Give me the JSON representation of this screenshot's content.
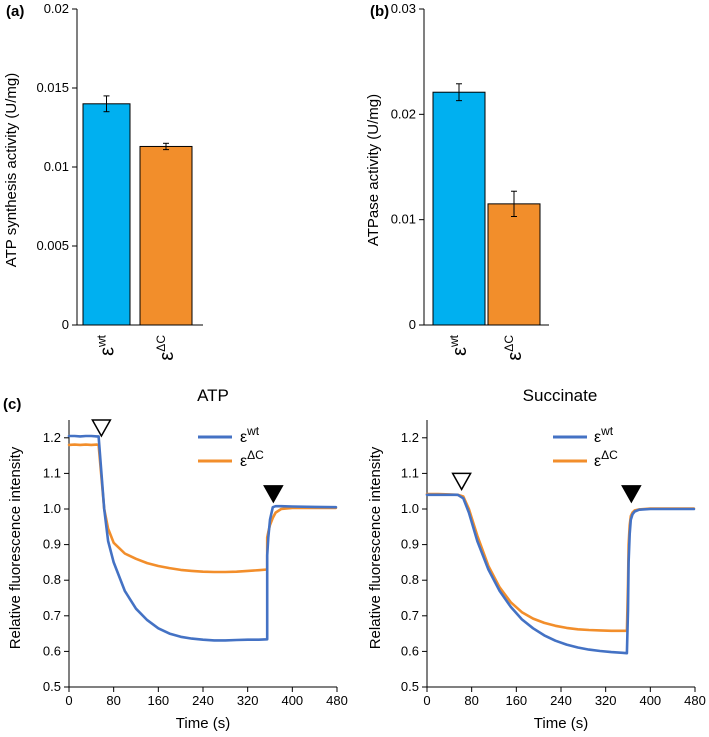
{
  "chart_data": [
    {
      "panel": "(a)",
      "type": "bar",
      "categories": [
        {
          "base": "ε",
          "sup": "wt"
        },
        {
          "base": "ε",
          "sup": "ΔC"
        }
      ],
      "values": [
        0.014,
        0.0113
      ],
      "errors": [
        0.0005,
        0.0002
      ],
      "colors": [
        "#00B0F0",
        "#F28E2B"
      ],
      "ylabel": "ATP synthesis activity (U/mg)",
      "ylim": [
        0,
        0.02
      ],
      "yticks": [
        "0",
        "0.005",
        "0.01",
        "0.015",
        "0.02"
      ],
      "ytick_values": [
        0,
        0.005,
        0.01,
        0.015,
        0.02
      ]
    },
    {
      "panel": "(b)",
      "type": "bar",
      "categories": [
        {
          "base": "ε",
          "sup": "wt"
        },
        {
          "base": "ε",
          "sup": "ΔC"
        }
      ],
      "values": [
        0.0221,
        0.0115
      ],
      "errors": [
        0.0008,
        0.0012
      ],
      "colors": [
        "#00B0F0",
        "#F28E2B"
      ],
      "ylabel": "ATPase activity (U/mg)",
      "ylim": [
        0,
        0.03
      ],
      "yticks": [
        "0",
        "0.01",
        "0.02",
        "0.03"
      ],
      "ytick_values": [
        0,
        0.01,
        0.02,
        0.03
      ]
    },
    {
      "panel": "(c)",
      "type": "line",
      "title": "ATP",
      "xlabel": "Time (s)",
      "ylabel": "Relative fluorescence intensity",
      "xlim": [
        0,
        480
      ],
      "ylim": [
        0.5,
        1.25
      ],
      "xticks": [
        0,
        80,
        160,
        240,
        320,
        400,
        480
      ],
      "yticks": [
        "0.5",
        "0.6",
        "0.7",
        "0.8",
        "0.9",
        "1.0",
        "1.1",
        "1.2"
      ],
      "ytick_values": [
        0.5,
        0.6,
        0.7,
        0.8,
        0.9,
        1.0,
        1.1,
        1.2
      ],
      "legend": [
        {
          "base": "ε",
          "sup": "wt",
          "color": "#4472C4"
        },
        {
          "base": "ε",
          "sup": "ΔC",
          "color": "#F28E2B"
        }
      ],
      "legend_position": "top-right",
      "markers": [
        {
          "type": "open-triangle",
          "x": 58,
          "y": 1.205
        },
        {
          "type": "filled-triangle",
          "x": 366,
          "y": 1.02
        }
      ],
      "series": [
        {
          "name": "εwt",
          "color": "#4472C4",
          "x": [
            0,
            10,
            20,
            30,
            40,
            50,
            53,
            63,
            70,
            80,
            100,
            120,
            140,
            160,
            180,
            200,
            220,
            240,
            260,
            280,
            300,
            320,
            340,
            355,
            355,
            357,
            360,
            365,
            370,
            380,
            400,
            440,
            478
          ],
          "y": [
            1.205,
            1.205,
            1.204,
            1.205,
            1.205,
            1.204,
            1.204,
            1.0,
            0.91,
            0.85,
            0.77,
            0.72,
            0.688,
            0.665,
            0.65,
            0.641,
            0.636,
            0.633,
            0.631,
            0.631,
            0.632,
            0.633,
            0.633,
            0.634,
            0.87,
            0.92,
            0.97,
            1.005,
            1.008,
            1.008,
            1.007,
            1.006,
            1.005
          ]
        },
        {
          "name": "εΔC",
          "color": "#F28E2B",
          "x": [
            0,
            10,
            20,
            30,
            40,
            50,
            53,
            63,
            70,
            80,
            100,
            120,
            140,
            160,
            180,
            200,
            220,
            240,
            260,
            280,
            300,
            320,
            340,
            355,
            355,
            357,
            360,
            365,
            370,
            380,
            400,
            440,
            478
          ],
          "y": [
            1.18,
            1.181,
            1.18,
            1.181,
            1.18,
            1.181,
            1.18,
            1.0,
            0.945,
            0.905,
            0.875,
            0.86,
            0.848,
            0.84,
            0.834,
            0.829,
            0.826,
            0.824,
            0.823,
            0.823,
            0.824,
            0.826,
            0.828,
            0.83,
            0.92,
            0.935,
            0.955,
            0.975,
            0.99,
            1.0,
            1.003,
            1.003,
            1.003
          ]
        }
      ]
    },
    {
      "type": "line",
      "title": "Succinate",
      "xlabel": "Time (s)",
      "ylabel": "Relative fluorescence intensity",
      "xlim": [
        0,
        480
      ],
      "ylim": [
        0.5,
        1.25
      ],
      "xticks": [
        0,
        80,
        160,
        240,
        320,
        400,
        480
      ],
      "yticks": [
        "0.5",
        "0.6",
        "0.7",
        "0.8",
        "0.9",
        "1.0",
        "1.1",
        "1.2"
      ],
      "ytick_values": [
        0.5,
        0.6,
        0.7,
        0.8,
        0.9,
        1.0,
        1.1,
        1.2
      ],
      "legend": [
        {
          "base": "ε",
          "sup": "wt",
          "color": "#4472C4"
        },
        {
          "base": "ε",
          "sup": "ΔC",
          "color": "#F28E2B"
        }
      ],
      "legend_position": "top-right",
      "markers": [
        {
          "type": "open-triangle",
          "x": 62,
          "y": 1.055
        },
        {
          "type": "filled-triangle",
          "x": 366,
          "y": 1.02
        }
      ],
      "series": [
        {
          "name": "εwt",
          "color": "#4472C4",
          "x": [
            0,
            20,
            40,
            55,
            65,
            75,
            90,
            110,
            130,
            150,
            170,
            190,
            210,
            230,
            250,
            270,
            290,
            310,
            330,
            350,
            358,
            360,
            361,
            363,
            365,
            368,
            372,
            380,
            400,
            440,
            478
          ],
          "y": [
            1.04,
            1.04,
            1.04,
            1.04,
            1.03,
            0.99,
            0.91,
            0.83,
            0.77,
            0.725,
            0.69,
            0.665,
            0.645,
            0.63,
            0.619,
            0.611,
            0.605,
            0.601,
            0.598,
            0.596,
            0.595,
            0.715,
            0.85,
            0.93,
            0.97,
            0.985,
            0.993,
            0.998,
            1.0,
            1.0,
            1.0
          ]
        },
        {
          "name": "εΔC",
          "color": "#F28E2B",
          "x": [
            0,
            20,
            40,
            55,
            65,
            75,
            90,
            110,
            130,
            150,
            170,
            190,
            210,
            230,
            250,
            270,
            290,
            310,
            330,
            350,
            358,
            360,
            361,
            363,
            365,
            368,
            372,
            380,
            400,
            440,
            478
          ],
          "y": [
            1.042,
            1.042,
            1.041,
            1.04,
            1.035,
            1.0,
            0.925,
            0.84,
            0.78,
            0.738,
            0.71,
            0.692,
            0.68,
            0.672,
            0.666,
            0.662,
            0.66,
            0.659,
            0.658,
            0.658,
            0.658,
            0.79,
            0.9,
            0.955,
            0.98,
            0.99,
            0.996,
            0.999,
            1.001,
            1.001,
            1.001
          ]
        }
      ]
    }
  ]
}
